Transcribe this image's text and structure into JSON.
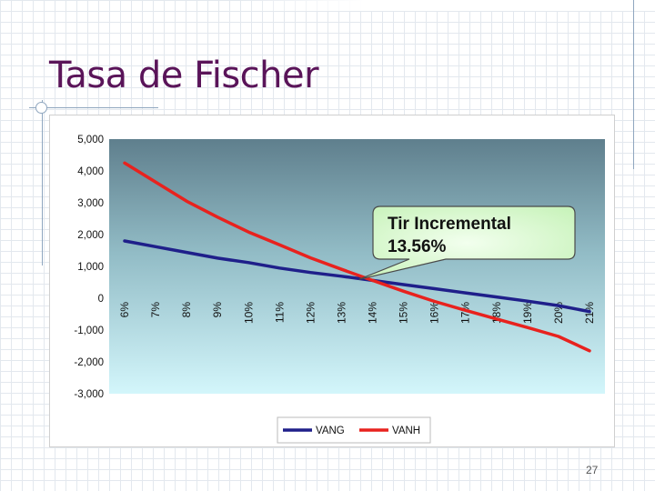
{
  "slide": {
    "title": "Tasa de Fischer",
    "page_number": "27"
  },
  "chart_data": {
    "type": "line",
    "x": [
      "6%",
      "7%",
      "8%",
      "9%",
      "10%",
      "11%",
      "12%",
      "13%",
      "14%",
      "15%",
      "16%",
      "17%",
      "18%",
      "19%",
      "20%",
      "21%"
    ],
    "y_ticks": [
      "5,000",
      "4,000",
      "3,000",
      "2,000",
      "1,000",
      "0",
      "-1,000",
      "-2,000",
      "-3,000"
    ],
    "ylim": [
      -3000,
      5000
    ],
    "series": [
      {
        "name": "VANG",
        "color": "#1f1f8a",
        "values": [
          1800,
          1620,
          1440,
          1260,
          1120,
          950,
          810,
          690,
          560,
          430,
          300,
          170,
          40,
          -90,
          -230,
          -420
        ]
      },
      {
        "name": "VANH",
        "color": "#e8221e",
        "values": [
          4250,
          3650,
          3050,
          2550,
          2080,
          1680,
          1270,
          910,
          560,
          220,
          -100,
          -380,
          -650,
          -920,
          -1200,
          -1650
        ]
      }
    ],
    "annotation": {
      "line1": "Tir Incremental",
      "line2": "13.56%",
      "x": 13.56,
      "y": 590
    },
    "legend_position": "bottom",
    "grid": false
  }
}
